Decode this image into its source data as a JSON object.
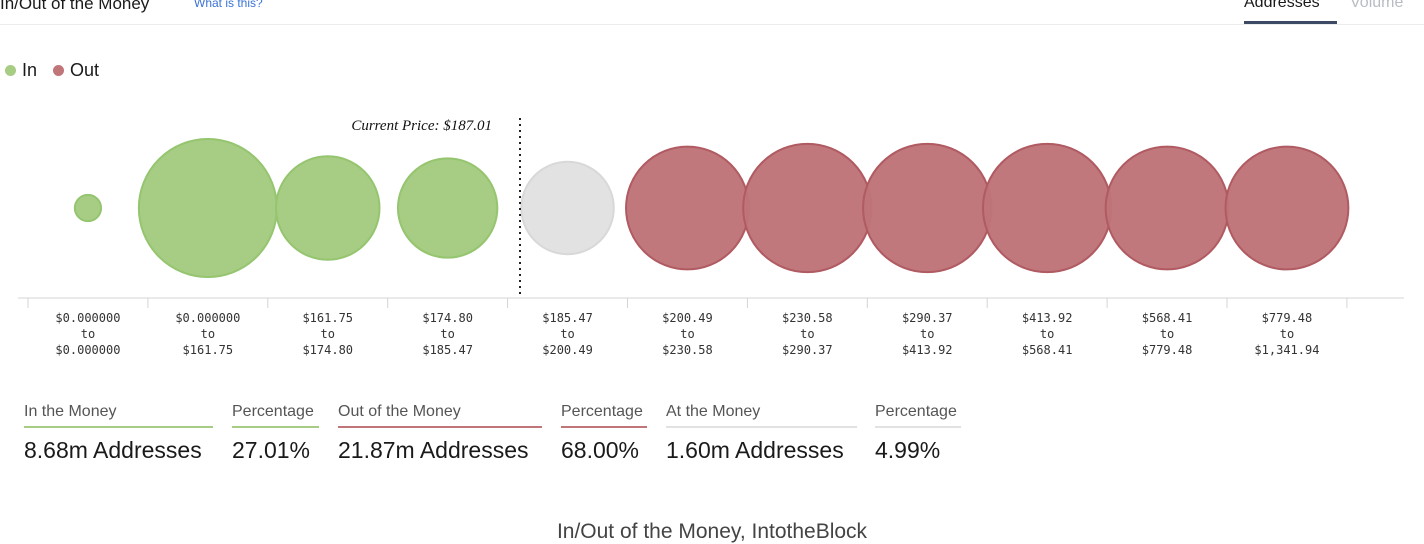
{
  "header": {
    "title": "In/Out of the Money",
    "help_link": "What is this?",
    "tabs": [
      {
        "label": "Addresses",
        "active": true
      },
      {
        "label": "Volume",
        "active": false
      }
    ]
  },
  "legend": [
    {
      "label": "In",
      "color": "#a7cc84"
    },
    {
      "label": "Out",
      "color": "#c07579"
    }
  ],
  "colors": {
    "in": "#a7cc84",
    "in_stroke": "#95c56f",
    "out": "#be7478",
    "out_stroke": "#b05a61",
    "at": "#e2e2e2",
    "at_stroke": "#d8d8d8"
  },
  "chart_data": {
    "type": "bubble",
    "annotation": "Current Price: $187.01",
    "current_price": 187.01,
    "bins": [
      {
        "from": "$0.000000",
        "to": "$0.000000",
        "status": "in",
        "relative_size": 0.19
      },
      {
        "from": "$0.000000",
        "to": "$161.75",
        "status": "in",
        "relative_size": 1.0
      },
      {
        "from": "$161.75",
        "to": "$174.80",
        "status": "in",
        "relative_size": 0.75
      },
      {
        "from": "$174.80",
        "to": "$185.47",
        "status": "in",
        "relative_size": 0.72
      },
      {
        "from": "$185.47",
        "to": "$200.49",
        "status": "at",
        "relative_size": 0.67
      },
      {
        "from": "$200.49",
        "to": "$230.58",
        "status": "out",
        "relative_size": 0.89
      },
      {
        "from": "$230.58",
        "to": "$290.37",
        "status": "out",
        "relative_size": 0.93
      },
      {
        "from": "$290.37",
        "to": "$413.92",
        "status": "out",
        "relative_size": 0.93
      },
      {
        "from": "$413.92",
        "to": "$568.41",
        "status": "out",
        "relative_size": 0.93
      },
      {
        "from": "$568.41",
        "to": "$779.48",
        "status": "out",
        "relative_size": 0.89
      },
      {
        "from": "$779.48",
        "to": "$1,341.94",
        "status": "out",
        "relative_size": 0.89
      }
    ]
  },
  "stats": [
    {
      "label": "In the Money",
      "value": "8.68m Addresses",
      "color": "#a7cc84"
    },
    {
      "label": "Percentage",
      "value": "27.01%",
      "color": "#a7cc84"
    },
    {
      "label": "Out of the Money",
      "value": "21.87m Addresses",
      "color": "#c07579"
    },
    {
      "label": "Percentage",
      "value": "68.00%",
      "color": "#c07579"
    },
    {
      "label": "At the Money",
      "value": "1.60m Addresses",
      "color": "#e2e2e2"
    },
    {
      "label": "Percentage",
      "value": "4.99%",
      "color": "#e2e2e2"
    }
  ],
  "caption": "In/Out of the Money, IntotheBlock"
}
